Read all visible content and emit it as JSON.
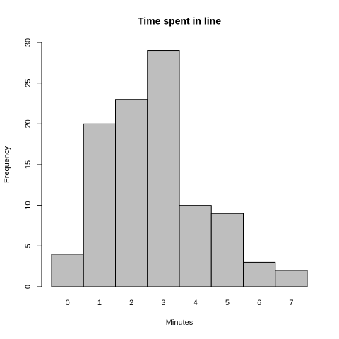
{
  "chart_data": {
    "type": "bar",
    "title": "Time spent in line",
    "x_label": "Minutes",
    "y_label": "Frequency",
    "categories": [
      "0",
      "1",
      "2",
      "3",
      "4",
      "5",
      "6",
      "7"
    ],
    "values": [
      4,
      20,
      23,
      29,
      10,
      9,
      3,
      2
    ],
    "color": "#bebebe",
    "ylim": [
      0,
      30
    ],
    "yticks": [
      0,
      5,
      10,
      15,
      20,
      25,
      30
    ],
    "grid": false
  }
}
